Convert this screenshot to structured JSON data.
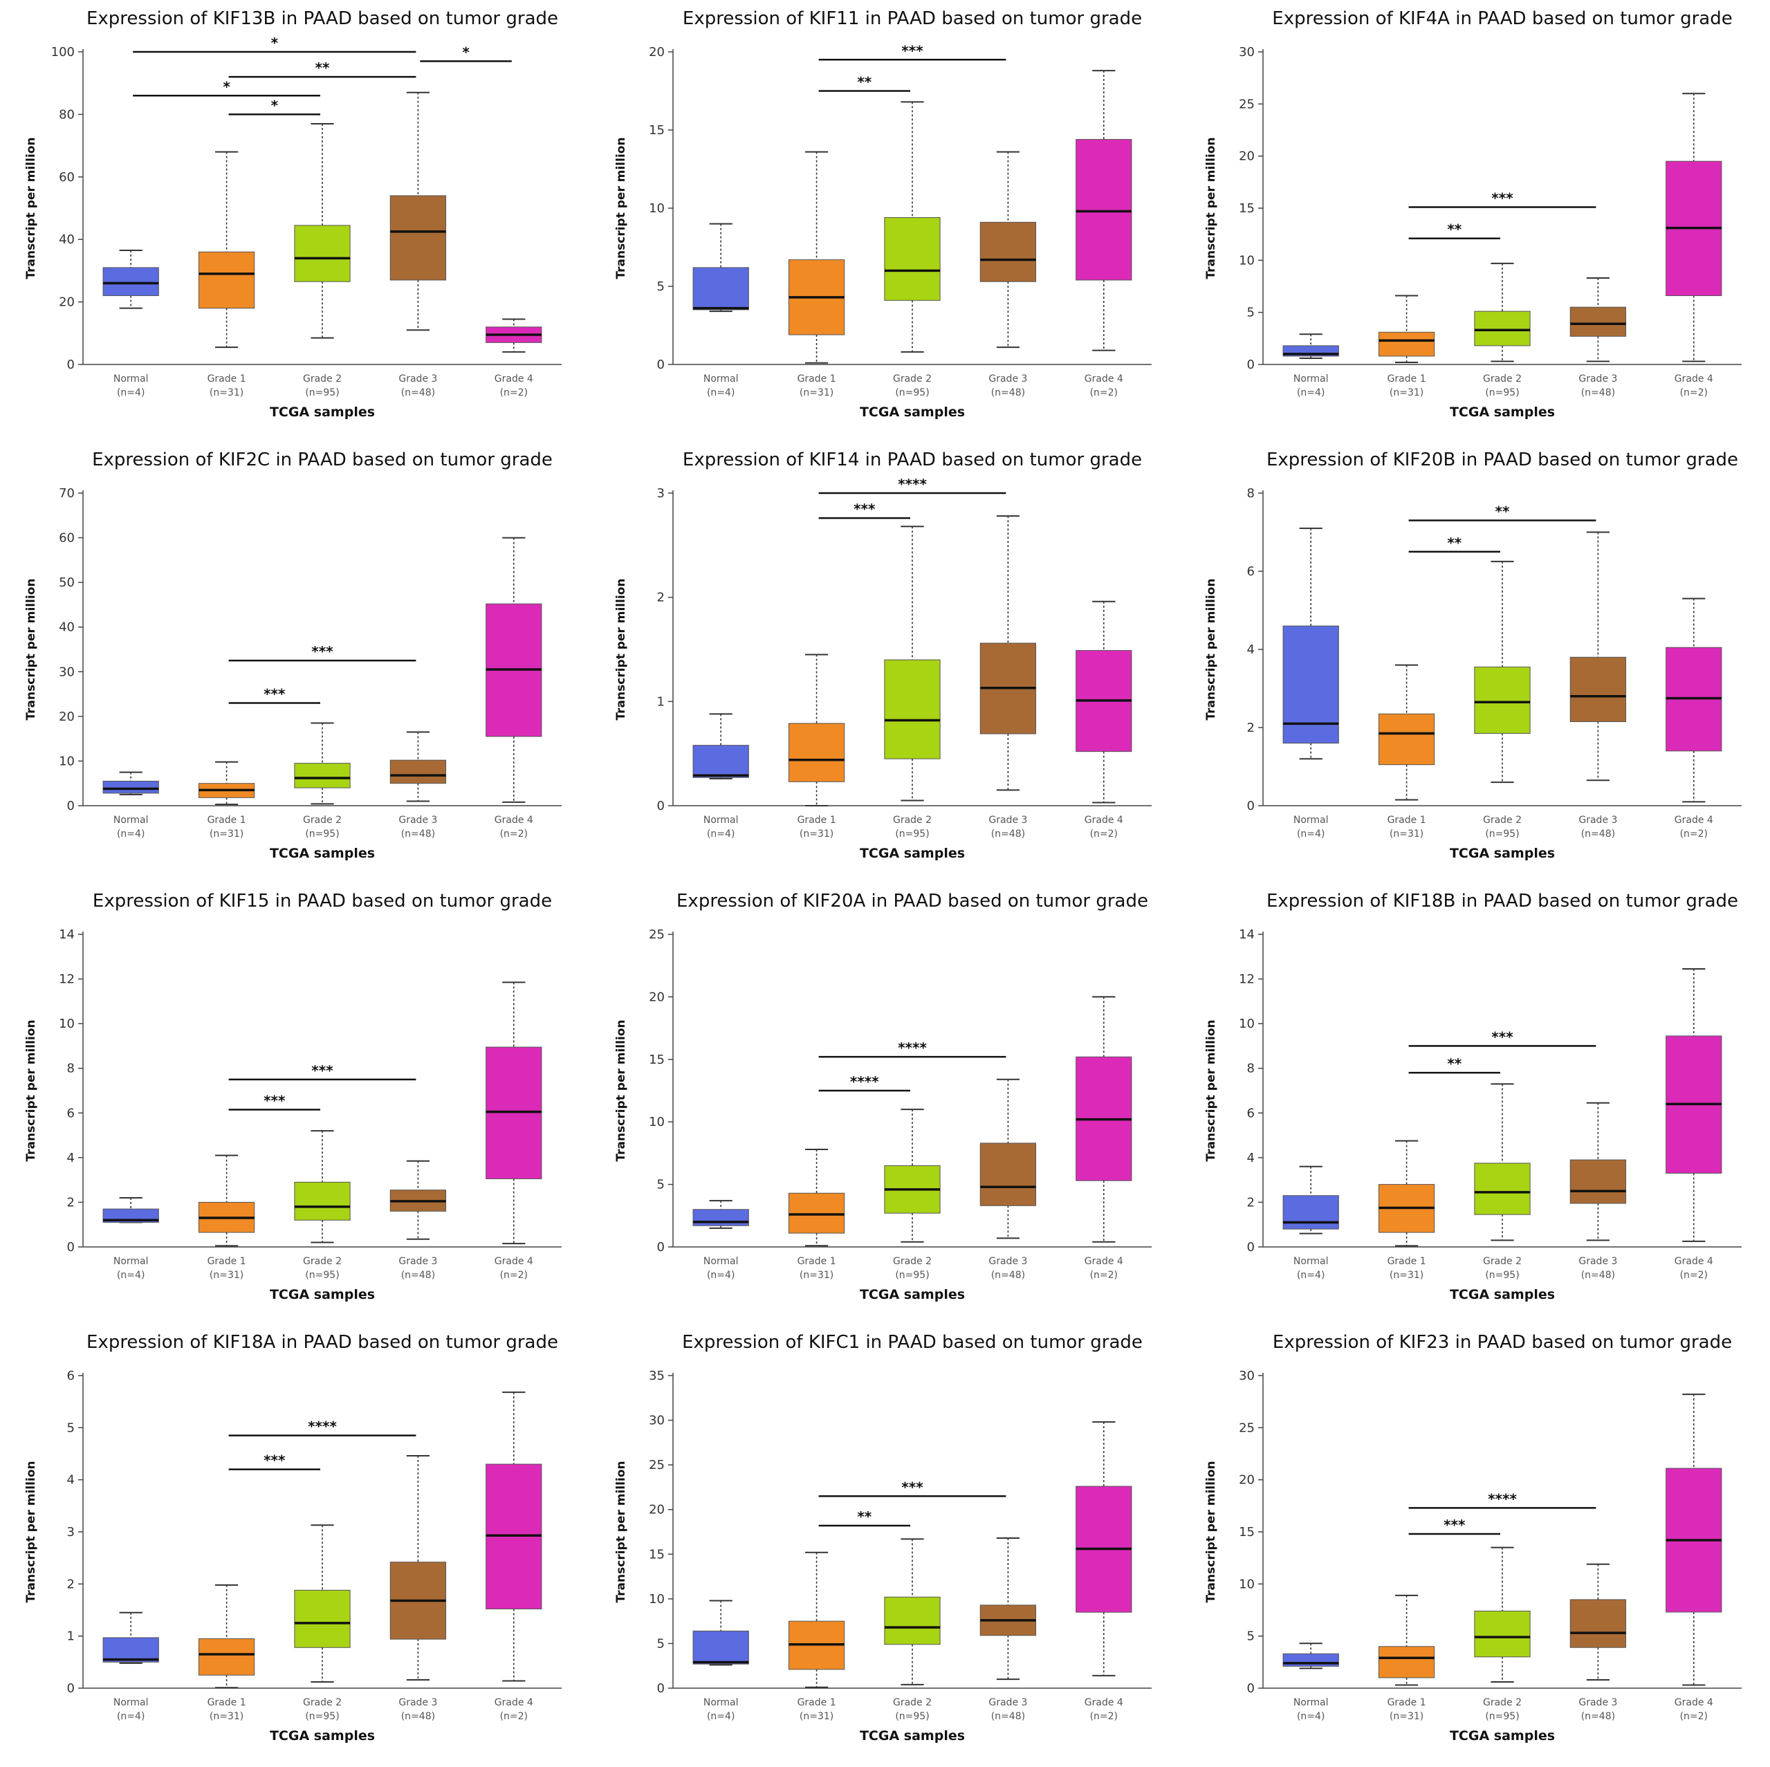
{
  "groups": {
    "labels": [
      "Normal",
      "Grade 1",
      "Grade 2",
      "Grade 3",
      "Grade 4"
    ],
    "counts": [
      "(n=4)",
      "(n=31)",
      "(n=95)",
      "(n=48)",
      "(n=2)"
    ],
    "colors": [
      "#5b6be0",
      "#f08a24",
      "#a8d414",
      "#a86a34",
      "#dc2ab8"
    ]
  },
  "chart_data": [
    {
      "type": "box",
      "title": "Expression of KIF13B in PAAD based on tumor grade",
      "xlabel": "TCGA samples",
      "ylabel": "Transcript per million",
      "ylim": [
        0,
        100
      ],
      "yticks": [
        0,
        20,
        40,
        60,
        80,
        100
      ],
      "categories": [
        "Normal",
        "Grade 1",
        "Grade 2",
        "Grade 3",
        "Grade 4"
      ],
      "boxes": [
        {
          "min": 18,
          "q1": 22,
          "median": 26,
          "q3": 31,
          "max": 36.5
        },
        {
          "min": 5.5,
          "q1": 18,
          "median": 29,
          "q3": 36,
          "max": 68
        },
        {
          "min": 8.5,
          "q1": 26.5,
          "median": 34,
          "q3": 44.5,
          "max": 77
        },
        {
          "min": 11,
          "q1": 27,
          "median": 42.5,
          "q3": 54,
          "max": 87
        },
        {
          "min": 4,
          "q1": 7,
          "median": 9.5,
          "q3": 12,
          "max": 14.5
        }
      ],
      "significance": [
        {
          "from": 0,
          "to": 3,
          "y": 100,
          "label": "*"
        },
        {
          "from": 3,
          "to": 4,
          "y": 97,
          "label": "*"
        },
        {
          "from": 1,
          "to": 3,
          "y": 92,
          "label": "**"
        },
        {
          "from": 0,
          "to": 2,
          "y": 86,
          "label": "*"
        },
        {
          "from": 1,
          "to": 2,
          "y": 80,
          "label": "*"
        }
      ]
    },
    {
      "type": "box",
      "title": "Expression of KIF11 in PAAD based on tumor grade",
      "xlabel": "TCGA samples",
      "ylabel": "Transcript per million",
      "ylim": [
        0,
        20
      ],
      "yticks": [
        0,
        5,
        10,
        15,
        20
      ],
      "categories": [
        "Normal",
        "Grade 1",
        "Grade 2",
        "Grade 3",
        "Grade 4"
      ],
      "boxes": [
        {
          "min": 3.4,
          "q1": 3.5,
          "median": 3.6,
          "q3": 6.2,
          "max": 9
        },
        {
          "min": 0.1,
          "q1": 1.9,
          "median": 4.3,
          "q3": 6.7,
          "max": 13.6
        },
        {
          "min": 0.8,
          "q1": 4.1,
          "median": 6.0,
          "q3": 9.4,
          "max": 16.8
        },
        {
          "min": 1.1,
          "q1": 5.3,
          "median": 6.7,
          "q3": 9.1,
          "max": 13.6
        },
        {
          "min": 0.9,
          "q1": 5.4,
          "median": 9.8,
          "q3": 14.4,
          "max": 18.8
        }
      ],
      "significance": [
        {
          "from": 1,
          "to": 3,
          "y": 19.5,
          "label": "***"
        },
        {
          "from": 1,
          "to": 2,
          "y": 17.5,
          "label": "**"
        }
      ]
    },
    {
      "type": "box",
      "title": "Expression of KIF4A in PAAD based on tumor grade",
      "xlabel": "TCGA samples",
      "ylabel": "Transcript per million",
      "ylim": [
        0,
        30
      ],
      "yticks": [
        0,
        5,
        10,
        15,
        20,
        25,
        30
      ],
      "categories": [
        "Normal",
        "Grade 1",
        "Grade 2",
        "Grade 3",
        "Grade 4"
      ],
      "boxes": [
        {
          "min": 0.6,
          "q1": 0.8,
          "median": 1.0,
          "q3": 1.8,
          "max": 2.9
        },
        {
          "min": 0.2,
          "q1": 0.8,
          "median": 2.3,
          "q3": 3.1,
          "max": 6.6
        },
        {
          "min": 0.3,
          "q1": 1.8,
          "median": 3.3,
          "q3": 5.1,
          "max": 9.7
        },
        {
          "min": 0.3,
          "q1": 2.7,
          "median": 3.9,
          "q3": 5.5,
          "max": 8.3
        },
        {
          "min": 0.3,
          "q1": 6.6,
          "median": 13.1,
          "q3": 19.5,
          "max": 26
        }
      ],
      "significance": [
        {
          "from": 1,
          "to": 3,
          "y": 15.1,
          "label": "***"
        },
        {
          "from": 1,
          "to": 2,
          "y": 12.1,
          "label": "**"
        }
      ]
    },
    {
      "type": "box",
      "title": "Expression of KIF2C in PAAD based on tumor grade",
      "xlabel": "TCGA samples",
      "ylabel": "Transcript per million",
      "ylim": [
        0,
        70
      ],
      "yticks": [
        0,
        10,
        20,
        30,
        40,
        50,
        60,
        70
      ],
      "categories": [
        "Normal",
        "Grade 1",
        "Grade 2",
        "Grade 3",
        "Grade 4"
      ],
      "boxes": [
        {
          "min": 2.5,
          "q1": 2.8,
          "median": 3.8,
          "q3": 5.5,
          "max": 7.5
        },
        {
          "min": 0.3,
          "q1": 1.8,
          "median": 3.5,
          "q3": 5.0,
          "max": 9.8
        },
        {
          "min": 0.4,
          "q1": 4.0,
          "median": 6.2,
          "q3": 9.5,
          "max": 18.5
        },
        {
          "min": 1.0,
          "q1": 5.0,
          "median": 6.8,
          "q3": 10.2,
          "max": 16.5
        },
        {
          "min": 0.8,
          "q1": 15.5,
          "median": 30.5,
          "q3": 45.2,
          "max": 60
        }
      ],
      "significance": [
        {
          "from": 1,
          "to": 3,
          "y": 32.5,
          "label": "***"
        },
        {
          "from": 1,
          "to": 2,
          "y": 23,
          "label": "***"
        }
      ]
    },
    {
      "type": "box",
      "title": "Expression of KIF14 in PAAD based on tumor grade",
      "xlabel": "TCGA samples",
      "ylabel": "Transcript per million",
      "ylim": [
        0,
        3
      ],
      "yticks": [
        0,
        1,
        2,
        3
      ],
      "categories": [
        "Normal",
        "Grade 1",
        "Grade 2",
        "Grade 3",
        "Grade 4"
      ],
      "boxes": [
        {
          "min": 0.26,
          "q1": 0.27,
          "median": 0.29,
          "q3": 0.58,
          "max": 0.88
        },
        {
          "min": 0.0,
          "q1": 0.23,
          "median": 0.44,
          "q3": 0.79,
          "max": 1.45
        },
        {
          "min": 0.05,
          "q1": 0.45,
          "median": 0.82,
          "q3": 1.4,
          "max": 2.68
        },
        {
          "min": 0.15,
          "q1": 0.69,
          "median": 1.13,
          "q3": 1.56,
          "max": 2.78
        },
        {
          "min": 0.03,
          "q1": 0.52,
          "median": 1.01,
          "q3": 1.49,
          "max": 1.96
        }
      ],
      "significance": [
        {
          "from": 1,
          "to": 3,
          "y": 3.0,
          "label": "****"
        },
        {
          "from": 1,
          "to": 2,
          "y": 2.76,
          "label": "***"
        }
      ]
    },
    {
      "type": "box",
      "title": "Expression of KIF20B in PAAD based on tumor grade",
      "xlabel": "TCGA samples",
      "ylabel": "Transcript per million",
      "ylim": [
        0,
        8
      ],
      "yticks": [
        0,
        2,
        4,
        6,
        8
      ],
      "categories": [
        "Normal",
        "Grade 1",
        "Grade 2",
        "Grade 3",
        "Grade 4"
      ],
      "boxes": [
        {
          "min": 1.2,
          "q1": 1.6,
          "median": 2.1,
          "q3": 4.6,
          "max": 7.1
        },
        {
          "min": 0.15,
          "q1": 1.05,
          "median": 1.85,
          "q3": 2.35,
          "max": 3.6
        },
        {
          "min": 0.6,
          "q1": 1.85,
          "median": 2.65,
          "q3": 3.55,
          "max": 6.25
        },
        {
          "min": 0.65,
          "q1": 2.15,
          "median": 2.8,
          "q3": 3.8,
          "max": 7.0
        },
        {
          "min": 0.1,
          "q1": 1.4,
          "median": 2.75,
          "q3": 4.05,
          "max": 5.3
        }
      ],
      "significance": [
        {
          "from": 1,
          "to": 3,
          "y": 7.3,
          "label": "**"
        },
        {
          "from": 1,
          "to": 2,
          "y": 6.5,
          "label": "**"
        }
      ]
    },
    {
      "type": "box",
      "title": "Expression of KIF15 in PAAD based on tumor grade",
      "xlabel": "TCGA samples",
      "ylabel": "Transcript per million",
      "ylim": [
        0,
        14
      ],
      "yticks": [
        0,
        2,
        4,
        6,
        8,
        10,
        12,
        14
      ],
      "categories": [
        "Normal",
        "Grade 1",
        "Grade 2",
        "Grade 3",
        "Grade 4"
      ],
      "boxes": [
        {
          "min": 1.1,
          "q1": 1.1,
          "median": 1.2,
          "q3": 1.7,
          "max": 2.2
        },
        {
          "min": 0.05,
          "q1": 0.65,
          "median": 1.3,
          "q3": 2.0,
          "max": 4.1
        },
        {
          "min": 0.2,
          "q1": 1.2,
          "median": 1.8,
          "q3": 2.9,
          "max": 5.2
        },
        {
          "min": 0.35,
          "q1": 1.6,
          "median": 2.05,
          "q3": 2.55,
          "max": 3.85
        },
        {
          "min": 0.15,
          "q1": 3.05,
          "median": 6.05,
          "q3": 8.95,
          "max": 11.85
        }
      ],
      "significance": [
        {
          "from": 1,
          "to": 3,
          "y": 7.5,
          "label": "***"
        },
        {
          "from": 1,
          "to": 2,
          "y": 6.15,
          "label": "***"
        }
      ]
    },
    {
      "type": "box",
      "title": "Expression of KIF20A in PAAD based on tumor grade",
      "xlabel": "TCGA samples",
      "ylabel": "Transcript per million",
      "ylim": [
        0,
        25
      ],
      "yticks": [
        0,
        5,
        10,
        15,
        20,
        25
      ],
      "categories": [
        "Normal",
        "Grade 1",
        "Grade 2",
        "Grade 3",
        "Grade 4"
      ],
      "boxes": [
        {
          "min": 1.5,
          "q1": 1.7,
          "median": 2.0,
          "q3": 3.0,
          "max": 3.7
        },
        {
          "min": 0.1,
          "q1": 1.1,
          "median": 2.6,
          "q3": 4.3,
          "max": 7.8
        },
        {
          "min": 0.4,
          "q1": 2.7,
          "median": 4.6,
          "q3": 6.5,
          "max": 11.0
        },
        {
          "min": 0.7,
          "q1": 3.3,
          "median": 4.8,
          "q3": 8.3,
          "max": 13.4
        },
        {
          "min": 0.4,
          "q1": 5.3,
          "median": 10.2,
          "q3": 15.2,
          "max": 20.0
        }
      ],
      "significance": [
        {
          "from": 1,
          "to": 3,
          "y": 15.2,
          "label": "****"
        },
        {
          "from": 1,
          "to": 2,
          "y": 12.5,
          "label": "****"
        }
      ]
    },
    {
      "type": "box",
      "title": "Expression of KIF18B in PAAD based on tumor grade",
      "xlabel": "TCGA samples",
      "ylabel": "Transcript per million",
      "ylim": [
        0,
        14
      ],
      "yticks": [
        0,
        2,
        4,
        6,
        8,
        10,
        12,
        14
      ],
      "categories": [
        "Normal",
        "Grade 1",
        "Grade 2",
        "Grade 3",
        "Grade 4"
      ],
      "boxes": [
        {
          "min": 0.6,
          "q1": 0.8,
          "median": 1.1,
          "q3": 2.3,
          "max": 3.6
        },
        {
          "min": 0.05,
          "q1": 0.65,
          "median": 1.75,
          "q3": 2.8,
          "max": 4.75
        },
        {
          "min": 0.3,
          "q1": 1.45,
          "median": 2.45,
          "q3": 3.75,
          "max": 7.3
        },
        {
          "min": 0.3,
          "q1": 1.95,
          "median": 2.5,
          "q3": 3.9,
          "max": 6.45
        },
        {
          "min": 0.25,
          "q1": 3.3,
          "median": 6.4,
          "q3": 9.45,
          "max": 12.45
        }
      ],
      "significance": [
        {
          "from": 1,
          "to": 3,
          "y": 9.0,
          "label": "***"
        },
        {
          "from": 1,
          "to": 2,
          "y": 7.8,
          "label": "**"
        }
      ]
    },
    {
      "type": "box",
      "title": "Expression of KIF18A in PAAD based on tumor grade",
      "xlabel": "TCGA samples",
      "ylabel": "Transcript per million",
      "ylim": [
        0,
        6
      ],
      "yticks": [
        0,
        1,
        2,
        3,
        4,
        5,
        6
      ],
      "categories": [
        "Normal",
        "Grade 1",
        "Grade 2",
        "Grade 3",
        "Grade 4"
      ],
      "boxes": [
        {
          "min": 0.48,
          "q1": 0.5,
          "median": 0.55,
          "q3": 0.97,
          "max": 1.45
        },
        {
          "min": 0.01,
          "q1": 0.25,
          "median": 0.65,
          "q3": 0.95,
          "max": 1.98
        },
        {
          "min": 0.12,
          "q1": 0.78,
          "median": 1.25,
          "q3": 1.88,
          "max": 3.13
        },
        {
          "min": 0.16,
          "q1": 0.94,
          "median": 1.68,
          "q3": 2.42,
          "max": 4.46
        },
        {
          "min": 0.14,
          "q1": 1.52,
          "median": 2.93,
          "q3": 4.3,
          "max": 5.68
        }
      ],
      "significance": [
        {
          "from": 1,
          "to": 3,
          "y": 4.85,
          "label": "****"
        },
        {
          "from": 1,
          "to": 2,
          "y": 4.2,
          "label": "***"
        }
      ]
    },
    {
      "type": "box",
      "title": "Expression of KIFC1 in PAAD based on tumor grade",
      "xlabel": "TCGA samples",
      "ylabel": "Transcript per million",
      "ylim": [
        0,
        35
      ],
      "yticks": [
        0,
        5,
        10,
        15,
        20,
        25,
        30,
        35
      ],
      "categories": [
        "Normal",
        "Grade 1",
        "Grade 2",
        "Grade 3",
        "Grade 4"
      ],
      "boxes": [
        {
          "min": 2.6,
          "q1": 2.7,
          "median": 2.9,
          "q3": 6.4,
          "max": 9.8
        },
        {
          "min": 0.1,
          "q1": 2.1,
          "median": 4.9,
          "q3": 7.5,
          "max": 15.2
        },
        {
          "min": 0.4,
          "q1": 4.9,
          "median": 6.8,
          "q3": 10.2,
          "max": 16.7
        },
        {
          "min": 1.0,
          "q1": 5.9,
          "median": 7.6,
          "q3": 9.3,
          "max": 16.8
        },
        {
          "min": 1.4,
          "q1": 8.5,
          "median": 15.6,
          "q3": 22.6,
          "max": 29.8
        }
      ],
      "significance": [
        {
          "from": 1,
          "to": 3,
          "y": 21.5,
          "label": "***"
        },
        {
          "from": 1,
          "to": 2,
          "y": 18.2,
          "label": "**"
        }
      ]
    },
    {
      "type": "box",
      "title": "Expression of KIF23 in PAAD based on tumor grade",
      "xlabel": "TCGA samples",
      "ylabel": "Transcript per million",
      "ylim": [
        0,
        30
      ],
      "yticks": [
        0,
        5,
        10,
        15,
        20,
        25,
        30
      ],
      "categories": [
        "Normal",
        "Grade 1",
        "Grade 2",
        "Grade 3",
        "Grade 4"
      ],
      "boxes": [
        {
          "min": 1.9,
          "q1": 2.1,
          "median": 2.4,
          "q3": 3.3,
          "max": 4.3
        },
        {
          "min": 0.3,
          "q1": 1.0,
          "median": 2.9,
          "q3": 4.0,
          "max": 8.9
        },
        {
          "min": 0.6,
          "q1": 3.0,
          "median": 4.9,
          "q3": 7.4,
          "max": 13.5
        },
        {
          "min": 0.8,
          "q1": 3.9,
          "median": 5.3,
          "q3": 8.5,
          "max": 11.9
        },
        {
          "min": 0.3,
          "q1": 7.3,
          "median": 14.2,
          "q3": 21.1,
          "max": 28.2
        }
      ],
      "significance": [
        {
          "from": 1,
          "to": 3,
          "y": 17.3,
          "label": "****"
        },
        {
          "from": 1,
          "to": 2,
          "y": 14.8,
          "label": "***"
        }
      ]
    }
  ]
}
